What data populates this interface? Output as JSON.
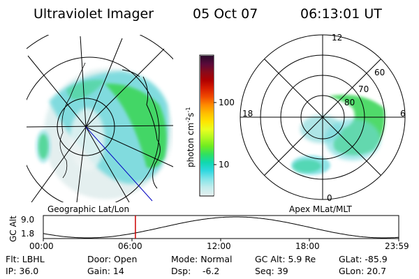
{
  "header": {
    "title": "Ultraviolet Imager",
    "date": "05 Oct 07",
    "time": "06:13:01 UT"
  },
  "left_panel": {
    "label": "Geographic Lat/Lon"
  },
  "right_panel": {
    "label": "Apex MLat/MLT",
    "mlt_labels": [
      "12",
      "18",
      "6",
      "0"
    ],
    "mlat_labels": [
      "60",
      "70",
      "80"
    ]
  },
  "colorbar": {
    "unit": "photon cm",
    "unit_exp1": "-2",
    "unit_mid": "s",
    "unit_exp2": "-1",
    "ticks": [
      "100",
      "10"
    ],
    "colors": [
      "#2a0a2a",
      "#5a0a3a",
      "#8a0a1a",
      "#b00000",
      "#d81e00",
      "#f04a00",
      "#ff8a00",
      "#ffbe00",
      "#ffe400",
      "#e8ff20",
      "#b0f820",
      "#70ec20",
      "#30e060",
      "#10d8b0",
      "#30d8e0",
      "#80e4e8",
      "#c0ecec",
      "#e4f0f0"
    ]
  },
  "timeline": {
    "ylabel": "GC Alt",
    "y_ticks": [
      "9.0",
      "1.8"
    ],
    "x_ticks": [
      "00:00",
      "06:00",
      "12:00",
      "18:00",
      "23:59"
    ],
    "current_time_hours": 6.22
  },
  "info": {
    "flt": "Flt: LBHL",
    "door": "Door: Open",
    "mode": "Mode: Normal",
    "gcalt": "GC Alt: 5.9 Re",
    "glat": "GLat: -85.9",
    "ip": "IP: 36.0",
    "gain": "Gain: 14",
    "dsp_label": "Dsp:",
    "dsp_value": "-6.2",
    "seq": "Seq: 39",
    "glon": "GLon:  20.7"
  },
  "colors": {
    "aurora_green": "#3ed65a",
    "aurora_cyan": "#5fd7dc",
    "aurora_pale": "#c9e6e6",
    "marker_red": "#cc0000",
    "track_blue": "#0000c0"
  }
}
